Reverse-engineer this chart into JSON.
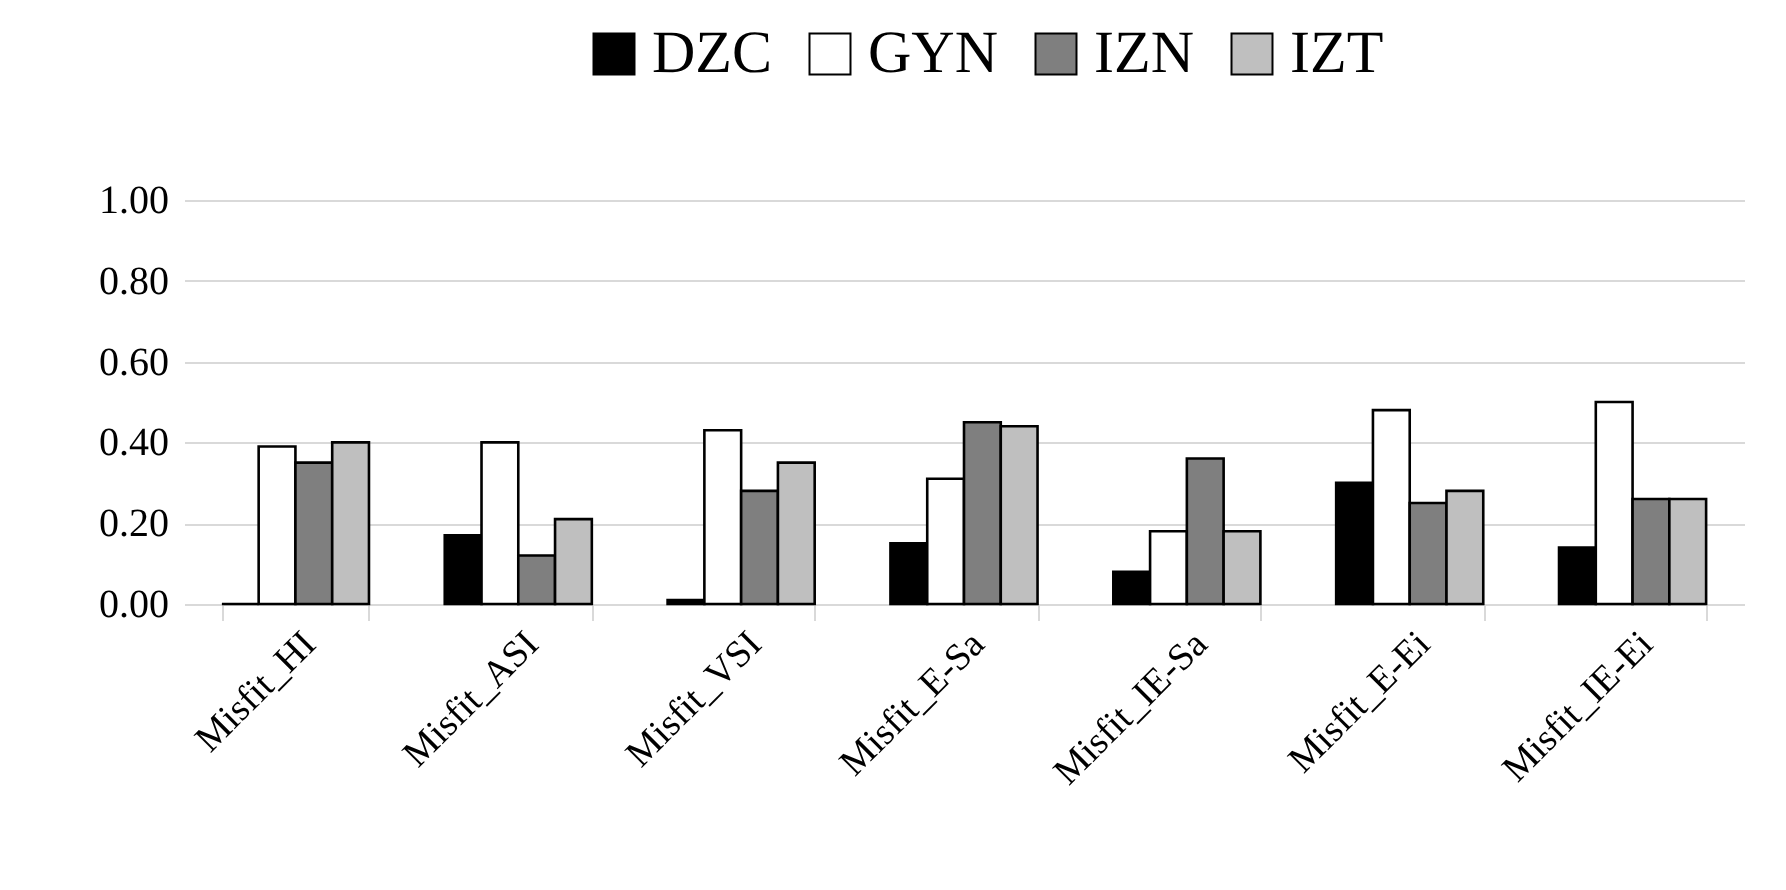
{
  "chart_data": {
    "type": "bar",
    "categories": [
      "Misfit_HI",
      "Misfit_ASI",
      "Misfit_VSI",
      "Misfit_E-Sa",
      "Misfit_IE-Sa",
      "Misfit_E-Ei",
      "Misfit_IE-Ei"
    ],
    "series": [
      {
        "name": "DZC",
        "color": "#000000",
        "values": [
          0,
          0.17,
          0.01,
          0.15,
          0.08,
          0.3,
          0.14
        ]
      },
      {
        "name": "GYN",
        "color": "#ffffff",
        "values": [
          0.39,
          0.4,
          0.43,
          0.31,
          0.18,
          0.48,
          0.5
        ]
      },
      {
        "name": "IZN",
        "color": "#7f7f7f",
        "values": [
          0.35,
          0.12,
          0.28,
          0.45,
          0.36,
          0.25,
          0.26
        ]
      },
      {
        "name": "IZT",
        "color": "#bfbfbf",
        "values": [
          0.4,
          0.21,
          0.35,
          0.44,
          0.18,
          0.28,
          0.26
        ]
      }
    ],
    "ylim": [
      0,
      1
    ],
    "yticks": [
      {
        "value": 0,
        "label": "0.00"
      },
      {
        "value": 0.2,
        "label": "0.20"
      },
      {
        "value": 0.4,
        "label": "0.40"
      },
      {
        "value": 0.6,
        "label": "0.60"
      },
      {
        "value": 0.8,
        "label": "0.80"
      },
      {
        "value": 1,
        "label": "1.00"
      }
    ],
    "grid": "y",
    "legend": "top"
  }
}
